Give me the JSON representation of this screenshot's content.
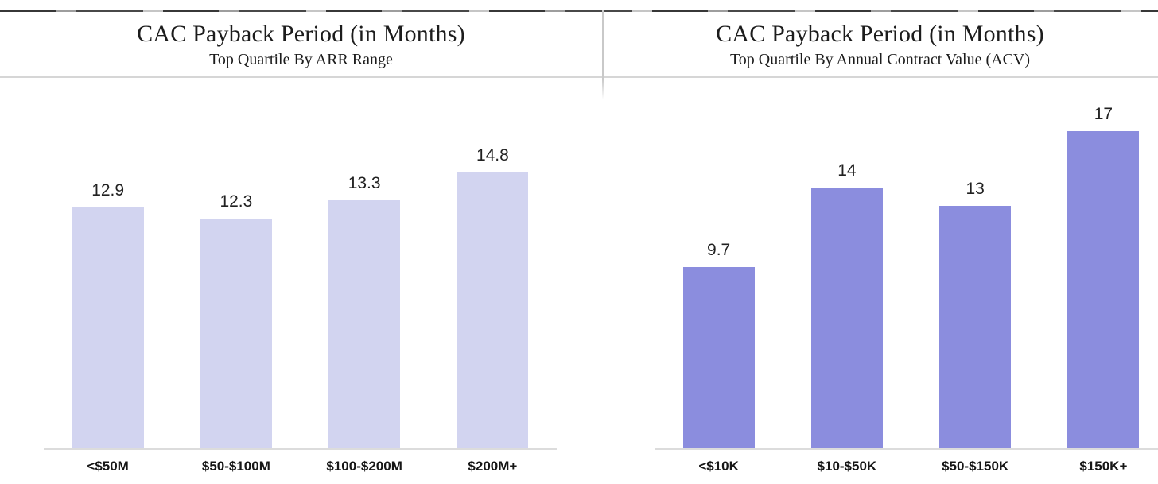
{
  "style": {
    "background": "#ffffff",
    "header_rule_color": "#d6d6d6",
    "divider_color": "#c9c9c9",
    "axis_line_color": "#dcdcdc",
    "title_color": "#1c1c1c",
    "value_label_color": "#212121",
    "category_label_color": "#161616"
  },
  "chart_data": [
    {
      "type": "bar",
      "title": "CAC Payback Period (in Months)",
      "subtitle": "Top Quartile By ARR Range",
      "categories": [
        "<$50M",
        "$50-$100M",
        "$100-$200M",
        "$200M+"
      ],
      "values": [
        12.9,
        12.3,
        13.3,
        14.8
      ],
      "value_labels": [
        "12.9",
        "12.3",
        "13.3",
        "14.8"
      ],
      "bar_color": "#d2d4f0",
      "xlabel": "",
      "ylabel": "",
      "ylim": [
        0,
        18.5
      ],
      "grid": false,
      "legend": false,
      "value_labels_position": "above-bars"
    },
    {
      "type": "bar",
      "title": "CAC Payback Period (in Months)",
      "subtitle": "Top Quartile By Annual Contract Value (ACV)",
      "categories": [
        "<$10K",
        "$10-$50K",
        "$50-$150K",
        "$150K+"
      ],
      "values": [
        9.7,
        14,
        13,
        17
      ],
      "value_labels": [
        "9.7",
        "14",
        "13",
        "17"
      ],
      "bar_color": "#8b8dde",
      "xlabel": "",
      "ylabel": "",
      "ylim": [
        0,
        18.5
      ],
      "grid": false,
      "legend": false,
      "value_labels_position": "above-bars"
    }
  ]
}
